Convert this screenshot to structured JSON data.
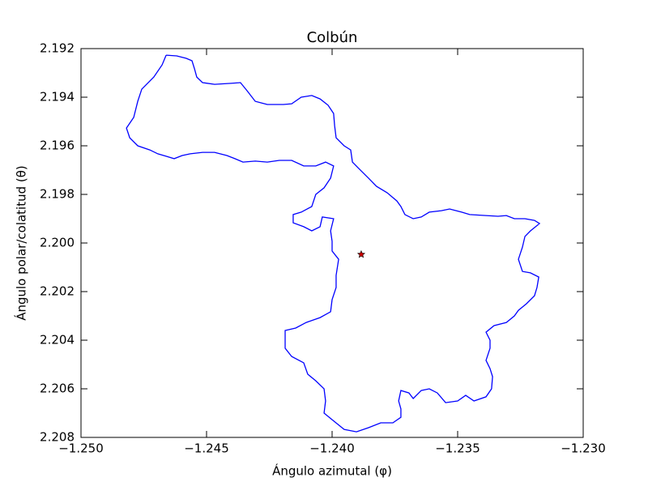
{
  "chart_data": {
    "type": "line",
    "title": "Colbún",
    "xlabel": "Ángulo azimutal (φ)",
    "ylabel": "Ángulo polar/colatitud (θ)",
    "color": "#0000ff",
    "x": [
      -1.24661,
      -1.24619,
      -1.24581,
      -1.24558,
      -1.24548,
      -1.24539,
      -1.24516,
      -1.24468,
      -1.24403,
      -1.24365,
      -1.24339,
      -1.24306,
      -1.24258,
      -1.24194,
      -1.24161,
      -1.24123,
      -1.24081,
      -1.24048,
      -1.24016,
      -1.23994,
      -1.2399,
      -1.23984,
      -1.23952,
      -1.23926,
      -1.23919,
      -1.23894,
      -1.23855,
      -1.23823,
      -1.23781,
      -1.23742,
      -1.23726,
      -1.2371,
      -1.23677,
      -1.23645,
      -1.23613,
      -1.23565,
      -1.23532,
      -1.23484,
      -1.23452,
      -1.23387,
      -1.23339,
      -1.23306,
      -1.23274,
      -1.23232,
      -1.23194,
      -1.23174,
      -1.2321,
      -1.23232,
      -1.23242,
      -1.23258,
      -1.23242,
      -1.2321,
      -1.23177,
      -1.23184,
      -1.23194,
      -1.23226,
      -1.23258,
      -1.23274,
      -1.23306,
      -1.23355,
      -1.23387,
      -1.23371,
      -1.23371,
      -1.23387,
      -1.23371,
      -1.23361,
      -1.23365,
      -1.23387,
      -1.23435,
      -1.23468,
      -1.235,
      -1.23548,
      -1.23581,
      -1.23613,
      -1.23645,
      -1.23677,
      -1.23694,
      -1.23726,
      -1.23735,
      -1.23726,
      -1.23726,
      -1.23758,
      -1.23806,
      -1.23855,
      -1.23903,
      -1.23952,
      -1.24,
      -1.24032,
      -1.24026,
      -1.24032,
      -1.24065,
      -1.24097,
      -1.24113,
      -1.24161,
      -1.24187,
      -1.24187,
      -1.24145,
      -1.24103,
      -1.24048,
      -1.24006,
      -1.24,
      -1.23984,
      -1.23984,
      -1.23974,
      -1.24,
      -1.24,
      -1.24006,
      -1.23994,
      -1.24039,
      -1.24048,
      -1.24081,
      -1.24113,
      -1.24155,
      -1.24155,
      -1.24123,
      -1.24081,
      -1.24065,
      -1.24032,
      -1.24006,
      -1.23994,
      -1.24026,
      -1.24065,
      -1.24113,
      -1.24161,
      -1.2421,
      -1.24258,
      -1.24306,
      -1.24355,
      -1.24387,
      -1.24419,
      -1.24468,
      -1.24516,
      -1.24565,
      -1.24597,
      -1.24629,
      -1.24661,
      -1.24694,
      -1.24726,
      -1.24774,
      -1.24806,
      -1.24819,
      -1.2479,
      -1.24774,
      -1.24758,
      -1.2471,
      -1.24677,
      -1.24661
    ],
    "values": [
      2.19227,
      2.1923,
      2.1924,
      2.1925,
      2.19283,
      2.19317,
      2.1934,
      2.19347,
      2.19343,
      2.1934,
      2.19373,
      2.19417,
      2.1943,
      2.1943,
      2.19427,
      2.194,
      2.19393,
      2.19407,
      2.19433,
      2.19467,
      2.19517,
      2.19567,
      2.196,
      2.19617,
      2.19667,
      2.19693,
      2.19733,
      2.19767,
      2.19793,
      2.19827,
      2.1985,
      2.19883,
      2.199,
      2.19893,
      2.19873,
      2.19867,
      2.1986,
      2.19873,
      2.19883,
      2.19887,
      2.1989,
      2.19887,
      2.199,
      2.199,
      2.19907,
      2.1992,
      2.1995,
      2.19973,
      2.20017,
      2.20067,
      2.20117,
      2.20123,
      2.2014,
      2.20183,
      2.20217,
      2.2025,
      2.20277,
      2.203,
      2.20327,
      2.2034,
      2.20367,
      2.204,
      2.20433,
      2.20483,
      2.20517,
      2.2055,
      2.206,
      2.20633,
      2.2065,
      2.20627,
      2.2065,
      2.20657,
      2.20617,
      2.206,
      2.20607,
      2.2064,
      2.20617,
      2.20607,
      2.2065,
      2.20683,
      2.20717,
      2.2074,
      2.2074,
      2.2076,
      2.20777,
      2.20767,
      2.20727,
      2.207,
      2.2065,
      2.206,
      2.20567,
      2.2054,
      2.20493,
      2.20467,
      2.20433,
      2.2036,
      2.2035,
      2.20327,
      2.20307,
      2.20283,
      2.20233,
      2.20183,
      2.20133,
      2.20067,
      2.20033,
      2.19993,
      2.1995,
      2.199,
      2.19893,
      2.19933,
      2.1995,
      2.19933,
      2.19917,
      2.19883,
      2.19873,
      2.1985,
      2.198,
      2.19773,
      2.19733,
      2.19683,
      2.19667,
      2.19683,
      2.19683,
      2.1966,
      2.1966,
      2.19667,
      2.19663,
      2.19667,
      2.19653,
      2.1964,
      2.19627,
      2.19627,
      2.19633,
      2.1964,
      2.19653,
      2.19643,
      2.19633,
      2.19617,
      2.196,
      2.19567,
      2.19527,
      2.19483,
      2.19417,
      2.19367,
      2.19317,
      2.19267,
      2.19227
    ],
    "markers": [
      {
        "x": -1.23884,
        "y": 2.20047,
        "color": "#cc0000",
        "marker": "star"
      }
    ],
    "xlim": [
      -1.25,
      -1.23
    ],
    "xticks": [
      {
        "value": -1.25,
        "label": "−1.250"
      },
      {
        "value": -1.245,
        "label": "−1.245"
      },
      {
        "value": -1.24,
        "label": "−1.240"
      },
      {
        "value": -1.235,
        "label": "−1.235"
      },
      {
        "value": -1.23,
        "label": "−1.230"
      }
    ],
    "ylim": [
      2.208,
      2.192
    ],
    "yticks": [
      2.192,
      2.194,
      2.196,
      2.198,
      {
        "value": 2.2,
        "label": "2.200"
      },
      2.202,
      2.204,
      2.206,
      2.208
    ]
  }
}
